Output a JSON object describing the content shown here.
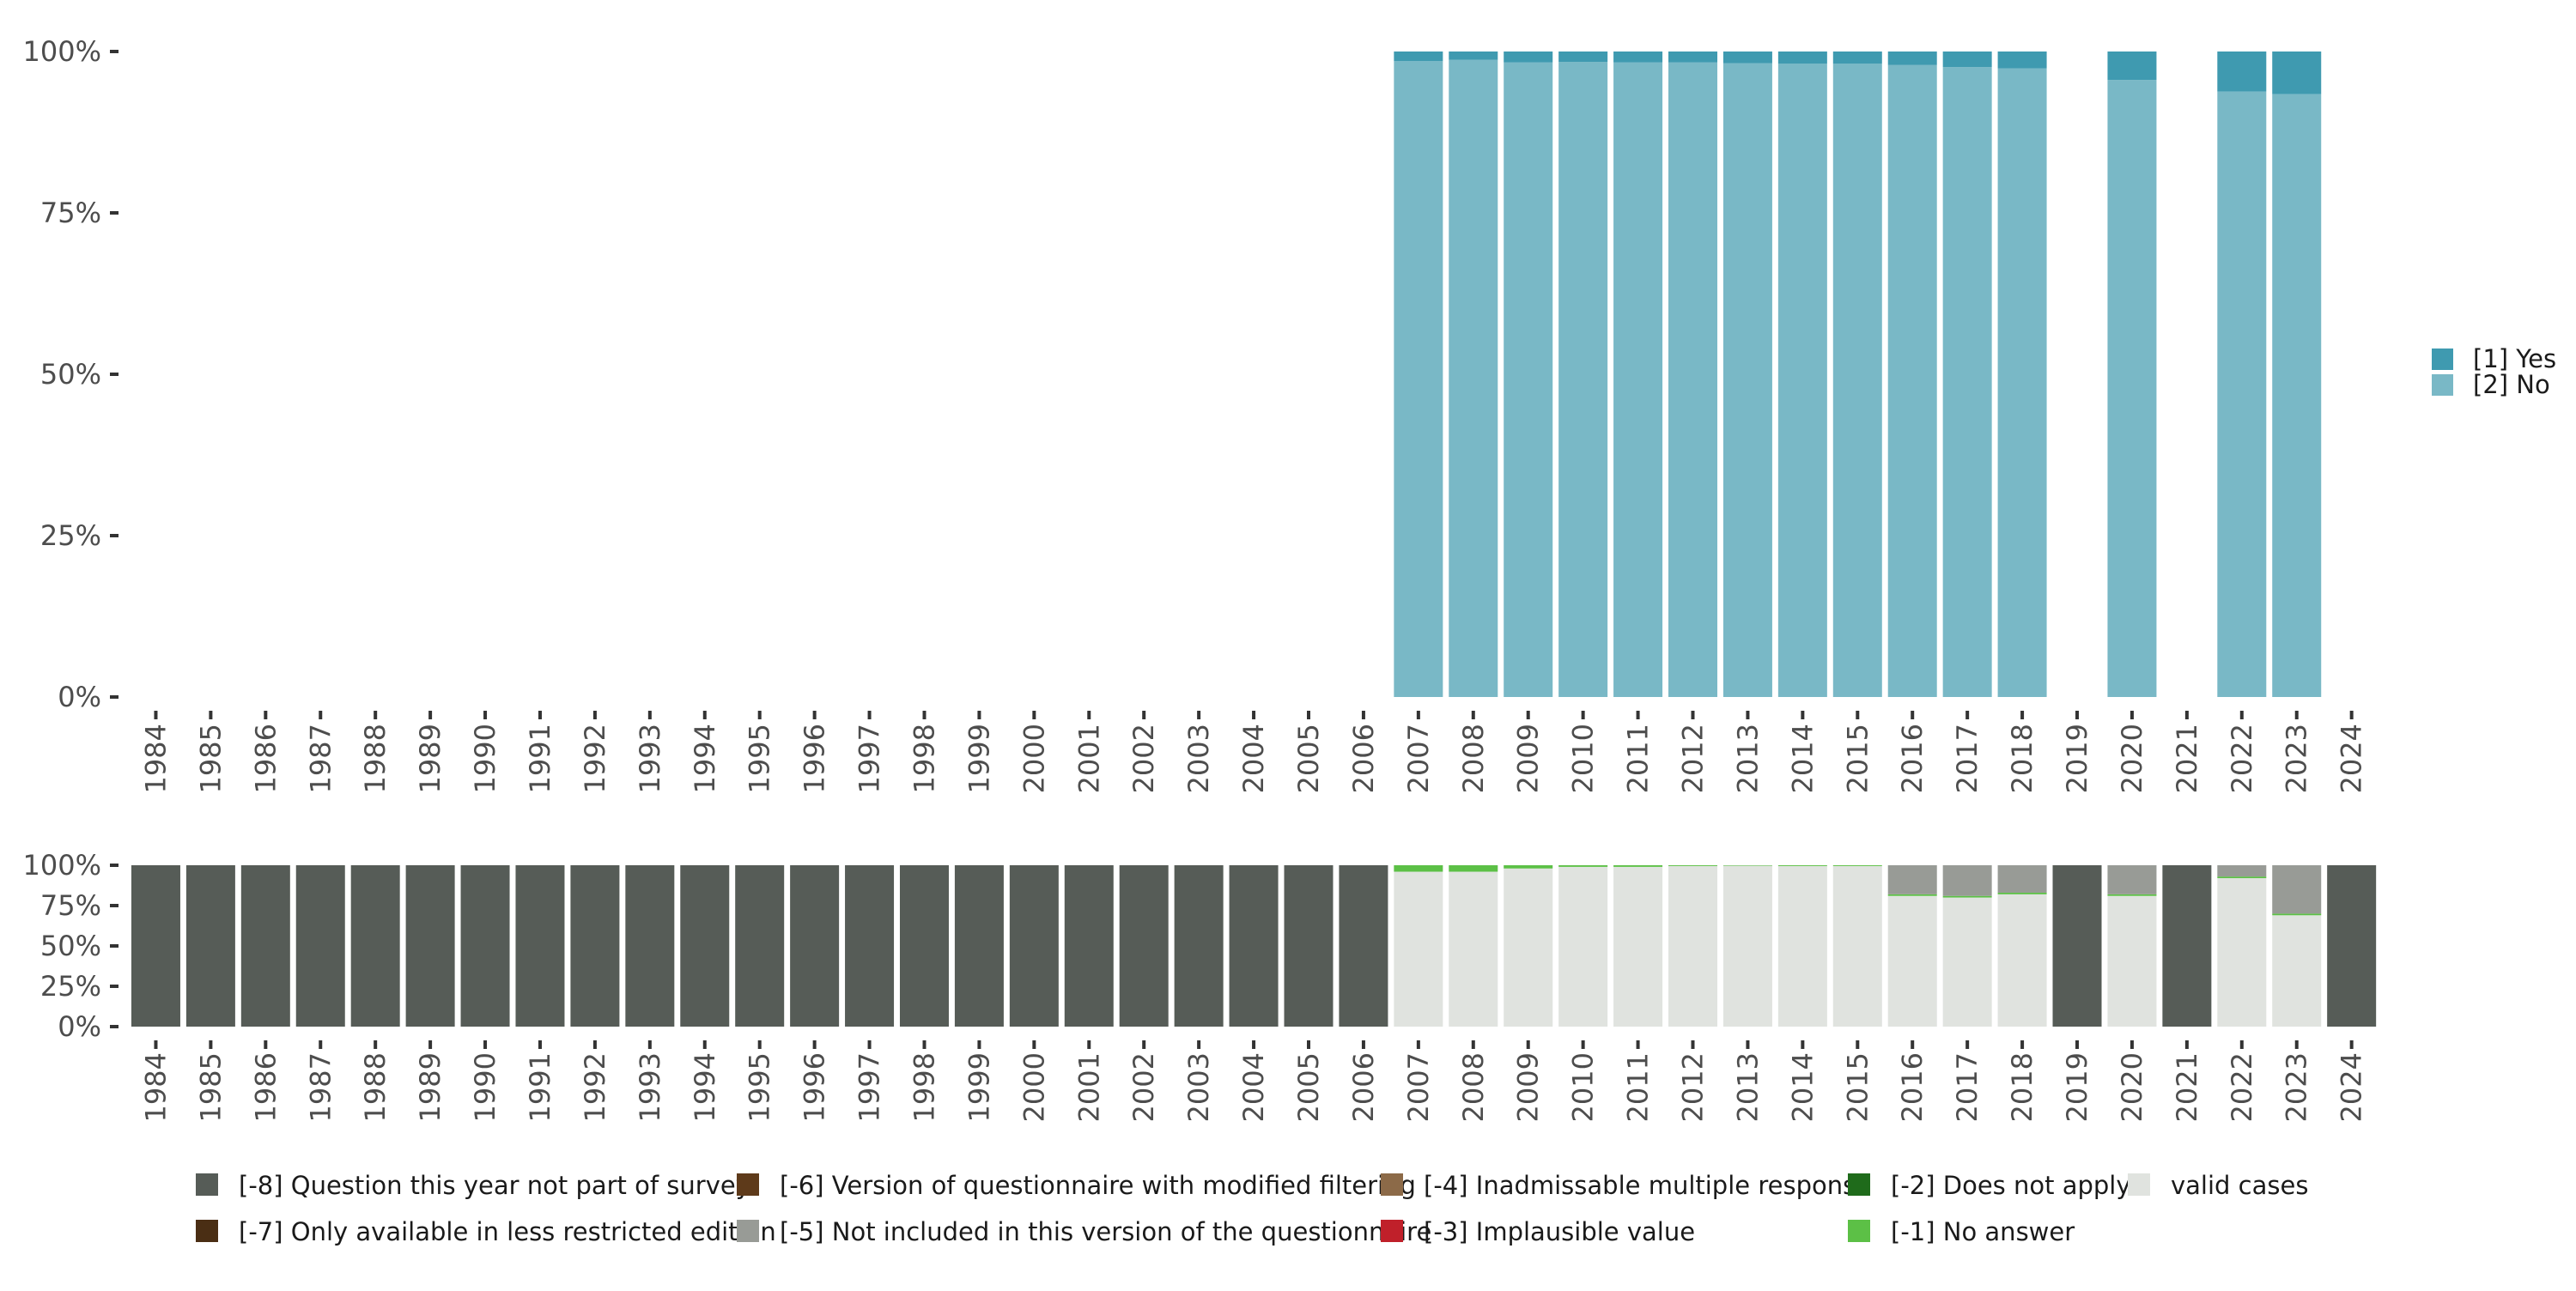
{
  "chart_data": [
    {
      "type": "bar",
      "stacked": true,
      "percent": true,
      "categories": [
        "1984",
        "1985",
        "1986",
        "1987",
        "1988",
        "1989",
        "1990",
        "1991",
        "1992",
        "1993",
        "1994",
        "1995",
        "1996",
        "1997",
        "1998",
        "1999",
        "2000",
        "2001",
        "2002",
        "2003",
        "2004",
        "2005",
        "2006",
        "2007",
        "2008",
        "2009",
        "2010",
        "2011",
        "2012",
        "2013",
        "2014",
        "2015",
        "2016",
        "2017",
        "2018",
        "2019",
        "2020",
        "2021",
        "2022",
        "2023",
        "2024"
      ],
      "yticks": [
        "0%",
        "25%",
        "50%",
        "75%",
        "100%"
      ],
      "ylim": [
        0,
        100
      ],
      "legend_position": "right",
      "series": [
        {
          "name": "[2] No",
          "color": "#79b8c6",
          "values": [
            null,
            null,
            null,
            null,
            null,
            null,
            null,
            null,
            null,
            null,
            null,
            null,
            null,
            null,
            null,
            null,
            null,
            null,
            null,
            null,
            null,
            null,
            null,
            98.5,
            98.7,
            98.3,
            98.4,
            98.3,
            98.3,
            98.2,
            98.1,
            98.1,
            97.9,
            97.6,
            97.4,
            null,
            95.6,
            null,
            93.8,
            93.4,
            null
          ]
        },
        {
          "name": "[1] Yes",
          "color": "#3f9ab0",
          "values": [
            null,
            null,
            null,
            null,
            null,
            null,
            null,
            null,
            null,
            null,
            null,
            null,
            null,
            null,
            null,
            null,
            null,
            null,
            null,
            null,
            null,
            null,
            null,
            1.5,
            1.3,
            1.7,
            1.6,
            1.7,
            1.7,
            1.8,
            1.9,
            1.9,
            2.1,
            2.4,
            2.6,
            null,
            4.4,
            null,
            6.2,
            6.6,
            null
          ]
        }
      ]
    },
    {
      "type": "bar",
      "stacked": true,
      "percent": true,
      "categories": [
        "1984",
        "1985",
        "1986",
        "1987",
        "1988",
        "1989",
        "1990",
        "1991",
        "1992",
        "1993",
        "1994",
        "1995",
        "1996",
        "1997",
        "1998",
        "1999",
        "2000",
        "2001",
        "2002",
        "2003",
        "2004",
        "2005",
        "2006",
        "2007",
        "2008",
        "2009",
        "2010",
        "2011",
        "2012",
        "2013",
        "2014",
        "2015",
        "2016",
        "2017",
        "2018",
        "2019",
        "2020",
        "2021",
        "2022",
        "2023",
        "2024"
      ],
      "yticks": [
        "0%",
        "25%",
        "50%",
        "75%",
        "100%"
      ],
      "ylim": [
        0,
        100
      ],
      "legend_position": "bottom",
      "series": [
        {
          "name": "valid cases",
          "color": "#e0e3df",
          "values": [
            0,
            0,
            0,
            0,
            0,
            0,
            0,
            0,
            0,
            0,
            0,
            0,
            0,
            0,
            0,
            0,
            0,
            0,
            0,
            0,
            0,
            0,
            0,
            96,
            96,
            98,
            99,
            99,
            99.5,
            99.7,
            99.5,
            99.5,
            81,
            80,
            82,
            0,
            81,
            0,
            92,
            69,
            0
          ]
        },
        {
          "name": "[-1] No answer",
          "color": "#5cc046",
          "values": [
            0,
            0,
            0,
            0,
            0,
            0,
            0,
            0,
            0,
            0,
            0,
            0,
            0,
            0,
            0,
            0,
            0,
            0,
            0,
            0,
            0,
            0,
            0,
            4,
            4,
            2,
            1,
            1,
            0.5,
            0.3,
            0.5,
            0.5,
            1,
            1,
            1,
            0,
            1,
            0,
            1,
            1,
            0
          ]
        },
        {
          "name": "[-2] Does not apply",
          "color": "#1f6b1b",
          "values": [
            0,
            0,
            0,
            0,
            0,
            0,
            0,
            0,
            0,
            0,
            0,
            0,
            0,
            0,
            0,
            0,
            0,
            0,
            0,
            0,
            0,
            0,
            0,
            0,
            0,
            0,
            0,
            0,
            0,
            0,
            0,
            0,
            0,
            0,
            0,
            0,
            0,
            0,
            0,
            0,
            0
          ]
        },
        {
          "name": "[-3] Implausible value",
          "color": "#c0202a",
          "values": [
            0,
            0,
            0,
            0,
            0,
            0,
            0,
            0,
            0,
            0,
            0,
            0,
            0,
            0,
            0,
            0,
            0,
            0,
            0,
            0,
            0,
            0,
            0,
            0,
            0,
            0,
            0,
            0,
            0,
            0,
            0,
            0,
            0,
            0,
            0,
            0,
            0,
            0,
            0,
            0,
            0
          ]
        },
        {
          "name": "[-4] Inadmissable multiple response",
          "color": "#8c6a48",
          "values": [
            0,
            0,
            0,
            0,
            0,
            0,
            0,
            0,
            0,
            0,
            0,
            0,
            0,
            0,
            0,
            0,
            0,
            0,
            0,
            0,
            0,
            0,
            0,
            0,
            0,
            0,
            0,
            0,
            0,
            0,
            0,
            0,
            0,
            0,
            0,
            0,
            0,
            0,
            0,
            0,
            0
          ]
        },
        {
          "name": "[-5] Not included in this version of the questionnaire",
          "color": "#989b96",
          "values": [
            0,
            0,
            0,
            0,
            0,
            0,
            0,
            0,
            0,
            0,
            0,
            0,
            0,
            0,
            0,
            0,
            0,
            0,
            0,
            0,
            0,
            0,
            0,
            0,
            0,
            0,
            0,
            0,
            0,
            0,
            0,
            0,
            18,
            19,
            17,
            0,
            18,
            0,
            7,
            30,
            0
          ]
        },
        {
          "name": "[-6] Version of questionnaire with modified filtering",
          "color": "#5e3a1a",
          "values": [
            0,
            0,
            0,
            0,
            0,
            0,
            0,
            0,
            0,
            0,
            0,
            0,
            0,
            0,
            0,
            0,
            0,
            0,
            0,
            0,
            0,
            0,
            0,
            0,
            0,
            0,
            0,
            0,
            0,
            0,
            0,
            0,
            0,
            0,
            0,
            0,
            0,
            0,
            0,
            0,
            0
          ]
        },
        {
          "name": "[-7] Only available in less restricted edition",
          "color": "#4a2e14",
          "values": [
            0,
            0,
            0,
            0,
            0,
            0,
            0,
            0,
            0,
            0,
            0,
            0,
            0,
            0,
            0,
            0,
            0,
            0,
            0,
            0,
            0,
            0,
            0,
            0,
            0,
            0,
            0,
            0,
            0,
            0,
            0,
            0,
            0,
            0,
            0,
            0,
            0,
            0,
            0,
            0,
            0
          ]
        },
        {
          "name": "[-8] Question this year not part of survey",
          "color": "#565c57",
          "values": [
            100,
            100,
            100,
            100,
            100,
            100,
            100,
            100,
            100,
            100,
            100,
            100,
            100,
            100,
            100,
            100,
            100,
            100,
            100,
            100,
            100,
            100,
            100,
            0,
            0,
            0,
            0,
            0,
            0,
            0,
            0,
            0,
            0,
            0,
            0,
            100,
            0,
            100,
            0,
            0,
            100
          ]
        }
      ]
    }
  ]
}
